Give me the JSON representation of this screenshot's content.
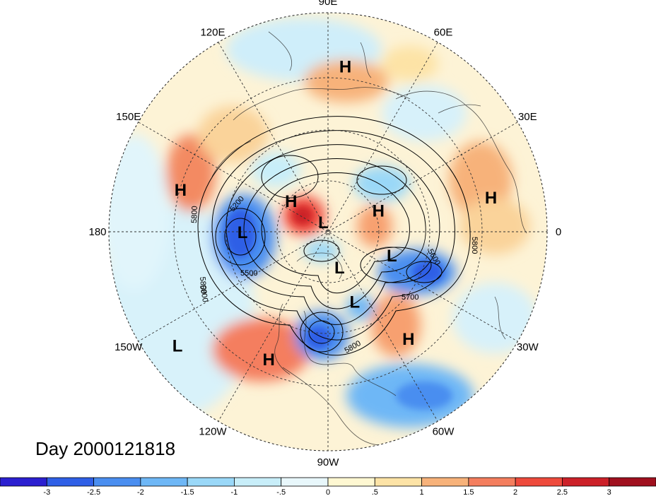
{
  "title": "Day 2000121818",
  "longitude_labels": [
    {
      "text": "90E",
      "angle": -90
    },
    {
      "text": "60E",
      "angle": -60
    },
    {
      "text": "30E",
      "angle": -30
    },
    {
      "text": "0",
      "angle": 0
    },
    {
      "text": "30W",
      "angle": 30
    },
    {
      "text": "60W",
      "angle": 60
    },
    {
      "text": "90W",
      "angle": 90
    },
    {
      "text": "120W",
      "angle": 120
    },
    {
      "text": "150W",
      "angle": 150
    },
    {
      "text": "180",
      "angle": 180
    },
    {
      "text": "150E",
      "angle": 210
    },
    {
      "text": "120E",
      "angle": 240
    }
  ],
  "pressure_centers": [
    {
      "type": "H",
      "angle": -84,
      "r": 0.76
    },
    {
      "type": "H",
      "angle": -12,
      "r": 0.76
    },
    {
      "type": "H",
      "angle": 196,
      "r": 0.7
    },
    {
      "type": "H",
      "angle": 220,
      "r": 0.22
    },
    {
      "type": "L",
      "angle": 245,
      "r": 0.05
    },
    {
      "type": "H",
      "angle": -23,
      "r": 0.25
    },
    {
      "type": "L",
      "angle": 180,
      "r": 0.39
    },
    {
      "type": "L",
      "angle": 72,
      "r": 0.17
    },
    {
      "type": "L",
      "angle": 20,
      "r": 0.31
    },
    {
      "type": "L",
      "angle": 69,
      "r": 0.34
    },
    {
      "type": "H",
      "angle": 53,
      "r": 0.61
    },
    {
      "type": "H",
      "angle": 115,
      "r": 0.64
    },
    {
      "type": "L",
      "angle": 143,
      "r": 0.86
    }
  ],
  "contour_labels": [
    "5200",
    "5800",
    "5800",
    "5500",
    "5800",
    "5600",
    "5800",
    "5700",
    "5800"
  ],
  "colorbar": {
    "ticks": [
      "-3",
      "-2.5",
      "-2",
      "-1.5",
      "-1",
      "-.5",
      "0",
      ".5",
      "1",
      "1.5",
      "2",
      "2.5",
      "3"
    ],
    "colors": [
      "#2b1fd0",
      "#2f5fe6",
      "#4a8ef0",
      "#6eb7f6",
      "#9ad8f8",
      "#c8eef9",
      "#e8f7fb",
      "#fff8d2",
      "#fde3a6",
      "#f7b27a",
      "#f47e5e",
      "#ee4a3c",
      "#cc2028",
      "#a0101e"
    ]
  }
}
